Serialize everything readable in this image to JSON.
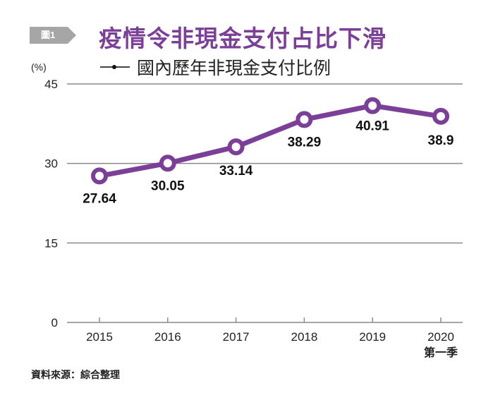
{
  "figure": {
    "badge": "圖1",
    "title": "疫情令非現金支付占比下滑",
    "source": "資料來源：綜合整理"
  },
  "colors": {
    "accent": "#7b3f98",
    "badge": "#a6a6a6",
    "grid": "#8a8a8a"
  },
  "chart_data": {
    "type": "line",
    "title": "疫情令非現金支付占比下滑",
    "ylabel": "(%)",
    "xlabel": "",
    "categories": [
      "2015",
      "2016",
      "2017",
      "2018",
      "2019",
      "2020"
    ],
    "category_sublabels": [
      "",
      "",
      "",
      "",
      "",
      "第一季"
    ],
    "series": [
      {
        "name": "國內歷年非現金支付比例",
        "values": [
          27.64,
          30.05,
          33.14,
          38.29,
          40.91,
          38.9
        ],
        "labels": [
          "27.64",
          "30.05",
          "33.14",
          "38.29",
          "40.91",
          "38.9"
        ]
      }
    ],
    "yticks": [
      "0",
      "15",
      "30",
      "45"
    ],
    "ytick_values": [
      0,
      15,
      30,
      45
    ],
    "ylim": [
      0,
      45
    ],
    "grid": true,
    "legend_position": "top-left"
  }
}
